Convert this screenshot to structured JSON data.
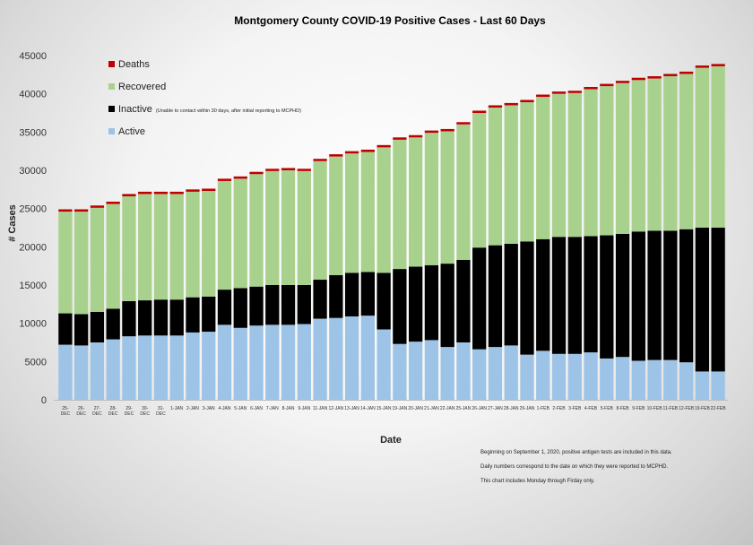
{
  "chart_data": {
    "type": "bar",
    "stacked": true,
    "title": "Montgomery County COVID-19 Positive Cases  - Last 60 Days",
    "xlabel": "Date",
    "ylabel": "# Cases",
    "ylim": [
      0,
      45000
    ],
    "yticks": [
      0,
      5000,
      10000,
      15000,
      20000,
      25000,
      30000,
      35000,
      40000,
      45000
    ],
    "grid": false,
    "legend_position": "top-left",
    "categories": [
      "25-DEC",
      "26-DEC",
      "27-DEC",
      "28-DEC",
      "29-DEC",
      "30-DEC",
      "31-DEC",
      "1-JAN",
      "2-JAN",
      "3-JAN",
      "4-JAN",
      "5-JAN",
      "6-JAN",
      "7-JAN",
      "8-JAN",
      "9-JAN",
      "11-JAN",
      "12-JAN",
      "13-JAN",
      "14-JAN",
      "15-JAN",
      "19-JAN",
      "20-JAN",
      "21-JAN",
      "22-JAN",
      "25-JAN",
      "26-JAN",
      "27-JAN",
      "28-JAN",
      "29-JAN",
      "1-FEB",
      "2-FEB",
      "3-FEB",
      "4-FEB",
      "5-FEB",
      "8-FEB",
      "9-FEB",
      "10-FEB",
      "11-FEB",
      "12-FEB",
      "19-FEB",
      "22-FEB"
    ],
    "series": [
      {
        "name": "Active",
        "color": "#9dc3e6",
        "values": [
          7200,
          7100,
          7500,
          7900,
          8300,
          8400,
          8400,
          8400,
          8800,
          8900,
          9800,
          9400,
          9700,
          9800,
          9800,
          9900,
          10600,
          10700,
          10900,
          11000,
          9200,
          7300,
          7600,
          7800,
          6900,
          7500,
          6600,
          6900,
          7100,
          5900,
          6400,
          6000,
          6000,
          6200,
          5400,
          5600,
          5100,
          5200,
          5200,
          4900,
          3700,
          3700
        ]
      },
      {
        "name": "Inactive",
        "color": "#000000",
        "values": [
          4100,
          4100,
          4000,
          4000,
          4600,
          4600,
          4700,
          4700,
          4600,
          4600,
          4600,
          5200,
          5100,
          5200,
          5200,
          5100,
          5100,
          5600,
          5700,
          5700,
          7400,
          9800,
          9800,
          9800,
          10900,
          10800,
          13300,
          13300,
          13300,
          14800,
          14600,
          15300,
          15300,
          15200,
          16100,
          16100,
          16900,
          16900,
          16900,
          17400,
          18800,
          18800
        ]
      },
      {
        "name": "Recovered",
        "color": "#a9d18e",
        "values": [
          13300,
          13400,
          13600,
          13700,
          13700,
          13900,
          13800,
          13800,
          13800,
          13800,
          14200,
          14300,
          14700,
          14900,
          15000,
          14900,
          15500,
          15500,
          15600,
          15700,
          16400,
          16900,
          16900,
          17300,
          17300,
          17700,
          17600,
          18000,
          18100,
          18200,
          18600,
          18700,
          18800,
          19200,
          19500,
          19700,
          19800,
          19900,
          20200,
          20300,
          20900,
          21100
        ]
      },
      {
        "name": "Deaths",
        "color": "#c00000",
        "values": [
          300,
          300,
          300,
          300,
          300,
          300,
          300,
          300,
          300,
          300,
          300,
          300,
          300,
          300,
          300,
          300,
          300,
          300,
          300,
          300,
          300,
          300,
          300,
          300,
          300,
          300,
          300,
          300,
          300,
          300,
          300,
          300,
          300,
          300,
          300,
          300,
          300,
          300,
          300,
          300,
          300,
          300
        ]
      }
    ],
    "legend": [
      {
        "name": "Deaths",
        "color": "#c00000",
        "note": ""
      },
      {
        "name": "Recovered",
        "color": "#a9d18e",
        "note": ""
      },
      {
        "name": "Inactive",
        "color": "#000000",
        "note": "(Unable to contact within 30 days, after initial reporting to MCPHD)"
      },
      {
        "name": "Active",
        "color": "#9dc3e6",
        "note": ""
      }
    ]
  },
  "footnotes": [
    "Beginning on September 1, 2020, positive antigen tests are included in this data.",
    "Daily numbers correspond to the date on which they were reported to MCPHD.",
    "This chart includes Monday through Firday only."
  ]
}
